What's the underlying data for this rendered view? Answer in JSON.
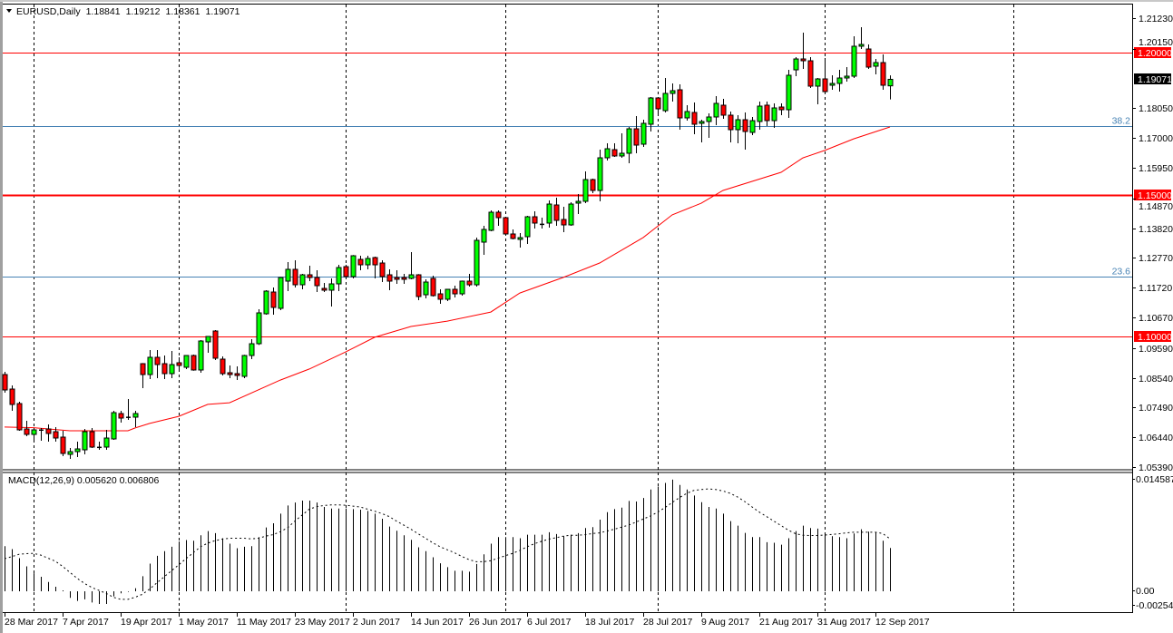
{
  "header": {
    "menu_icon": "triangle-down-icon",
    "symbol": "EURUSD,Daily",
    "open": "1.18841",
    "high": "1.19212",
    "low": "1.18361",
    "close": "1.19071"
  },
  "macd": {
    "legend": "MACD(12,26,9) 0.005620 0.006806",
    "scale_max_label": "0.014587",
    "zero_label": "0.00",
    "scale_min_label": "-0.002543",
    "range": [
      -0.002543,
      0.014587
    ],
    "histogram": [
      0.00586,
      0.00547,
      0.0043,
      0.00324,
      0.00234,
      0.00188,
      0.00121,
      0.00059,
      0.00012,
      -0.00086,
      -0.00125,
      -0.00105,
      -0.00145,
      -0.00164,
      -0.00164,
      -0.00066,
      -0.00027,
      -8e-05,
      0.00039,
      0.00195,
      0.00359,
      0.00461,
      0.0052,
      0.00578,
      0.00645,
      0.00664,
      0.00656,
      0.00727,
      0.00781,
      0.00754,
      0.00688,
      0.00617,
      0.00559,
      0.00578,
      0.00586,
      0.00703,
      0.00828,
      0.00883,
      0.01008,
      0.01113,
      0.01152,
      0.01176,
      0.01176,
      0.01152,
      0.01094,
      0.01074,
      0.01074,
      0.01074,
      0.01066,
      0.01059,
      0.01043,
      0.01008,
      0.00941,
      0.0084,
      0.00785,
      0.00727,
      0.00668,
      0.0057,
      0.0052,
      0.00441,
      0.00363,
      0.00313,
      0.00266,
      0.00266,
      0.00254,
      0.00355,
      0.0048,
      0.00617,
      0.00703,
      0.00703,
      0.00703,
      0.00688,
      0.00734,
      0.00734,
      0.00734,
      0.00766,
      0.00742,
      0.00715,
      0.00734,
      0.00754,
      0.0082,
      0.00832,
      0.0093,
      0.01027,
      0.01066,
      0.01086,
      0.01172,
      0.01164,
      0.01211,
      0.0132,
      0.01359,
      0.01406,
      0.01449,
      0.01379,
      0.0132,
      0.01242,
      0.01156,
      0.01094,
      0.01074,
      0.01008,
      0.0091,
      0.00852,
      0.00758,
      0.00703,
      0.00703,
      0.00637,
      0.00629,
      0.00605,
      0.00688,
      0.00781,
      0.00852,
      0.0082,
      0.00813,
      0.00754,
      0.00715,
      0.00703,
      0.00688,
      0.0075,
      0.00805,
      0.00773,
      0.00766,
      0.00656,
      0.00562
    ],
    "signal": [
      0.00422,
      0.00449,
      0.0048,
      0.00488,
      0.00492,
      0.00469,
      0.0043,
      0.00391,
      0.00324,
      0.00246,
      0.00168,
      0.00102,
      0.00051,
      0.00012,
      -0.00027,
      -0.00078,
      -0.00105,
      -0.00105,
      -0.00078,
      -0.00039,
      0.00031,
      0.00109,
      0.00188,
      0.00266,
      0.00344,
      0.00422,
      0.005,
      0.00578,
      0.00625,
      0.00656,
      0.00676,
      0.00688,
      0.00688,
      0.00688,
      0.0068,
      0.00688,
      0.00715,
      0.00734,
      0.00773,
      0.00824,
      0.0091,
      0.00988,
      0.01066,
      0.01098,
      0.01113,
      0.01121,
      0.01121,
      0.01117,
      0.01105,
      0.01094,
      0.01066,
      0.01039,
      0.01008,
      0.00969,
      0.0091,
      0.00859,
      0.00805,
      0.00746,
      0.00688,
      0.00629,
      0.00578,
      0.00539,
      0.005,
      0.00453,
      0.0041,
      0.00383,
      0.00383,
      0.00398,
      0.0043,
      0.00461,
      0.00492,
      0.00531,
      0.00578,
      0.00617,
      0.00648,
      0.00676,
      0.00695,
      0.00715,
      0.00727,
      0.00727,
      0.00734,
      0.0075,
      0.00758,
      0.00781,
      0.00805,
      0.00832,
      0.00859,
      0.00898,
      0.00938,
      0.00977,
      0.01027,
      0.01086,
      0.01152,
      0.01215,
      0.0127,
      0.01309,
      0.0132,
      0.01328,
      0.0132,
      0.01301,
      0.0127,
      0.01223,
      0.01164,
      0.01094,
      0.01027,
      0.00969,
      0.0091,
      0.00852,
      0.00793,
      0.00746,
      0.00727,
      0.00723,
      0.00723,
      0.0073,
      0.00738,
      0.00746,
      0.00758,
      0.00766,
      0.00766,
      0.00766,
      0.00766,
      0.0075,
      0.006806
    ]
  },
  "price_axis": {
    "range": [
      1.0539,
      1.2123
    ],
    "ticks": [
      "1.21230",
      "1.20150",
      "1.18050",
      "1.17000",
      "1.15950",
      "1.14870",
      "1.13820",
      "1.12770",
      "1.11720",
      "1.10670",
      "1.09590",
      "1.08540",
      "1.07490",
      "1.06440",
      "1.05390"
    ],
    "current_price_label": "1.19071",
    "current_price": 1.19071
  },
  "horizontal_levels": [
    {
      "price": 1.2,
      "label": "1.20000",
      "color": "#ff0000",
      "style": "thin"
    },
    {
      "price": 1.15,
      "label": "1.15000",
      "color": "#ff0000",
      "style": "thick"
    },
    {
      "price": 1.1,
      "label": "1.10000",
      "color": "#ff0000",
      "style": "thin"
    }
  ],
  "fibonacci_levels": [
    {
      "price": 1.17422,
      "label": "38.2",
      "color": "#4682b4"
    },
    {
      "price": 1.1211,
      "label": "23.6",
      "color": "#4682b4"
    }
  ],
  "colors": {
    "bull": "#00ff00",
    "bear": "#ff0000",
    "outline": "#000000",
    "moving_average": "#ff0000",
    "grid": "#000000"
  },
  "date_axis": {
    "labels": [
      {
        "bar": 0,
        "text": "28 Mar 2017"
      },
      {
        "bar": 8,
        "text": "7 Apr 2017"
      },
      {
        "bar": 16,
        "text": "19 Apr 2017"
      },
      {
        "bar": 24,
        "text": "1 May 2017"
      },
      {
        "bar": 32,
        "text": "11 May 2017"
      },
      {
        "bar": 40,
        "text": "23 May 2017"
      },
      {
        "bar": 48,
        "text": "2 Jun 2017"
      },
      {
        "bar": 56,
        "text": "14 Jun 2017"
      },
      {
        "bar": 64,
        "text": "26 Jun 2017"
      },
      {
        "bar": 72,
        "text": "6 Jul 2017"
      },
      {
        "bar": 80,
        "text": "18 Jul 2017"
      },
      {
        "bar": 88,
        "text": "28 Jul 2017"
      },
      {
        "bar": 96,
        "text": "9 Aug 2017"
      },
      {
        "bar": 104,
        "text": "21 Aug 2017"
      },
      {
        "bar": 112,
        "text": "31 Aug 2017"
      },
      {
        "bar": 120,
        "text": "12 Sep 2017"
      }
    ]
  },
  "moving_average": [
    [
      0,
      1.068
    ],
    [
      4,
      1.0678
    ],
    [
      9,
      1.0667
    ],
    [
      17,
      1.0667
    ],
    [
      18,
      1.0677
    ],
    [
      20,
      1.0693
    ],
    [
      24,
      1.0718
    ],
    [
      28,
      1.076
    ],
    [
      31,
      1.0766
    ],
    [
      38,
      1.0846
    ],
    [
      42,
      1.0885
    ],
    [
      47,
      1.0945
    ],
    [
      51,
      1.0997
    ],
    [
      56,
      1.1035
    ],
    [
      61,
      1.1054
    ],
    [
      67,
      1.1086
    ],
    [
      71,
      1.1153
    ],
    [
      77,
      1.1208
    ],
    [
      82,
      1.1259
    ],
    [
      88,
      1.1349
    ],
    [
      92,
      1.1429
    ],
    [
      96,
      1.147
    ],
    [
      99,
      1.1515
    ],
    [
      107,
      1.1579
    ],
    [
      110,
      1.163
    ],
    [
      113,
      1.1656
    ],
    [
      117,
      1.1697
    ],
    [
      122,
      1.1739
    ]
  ],
  "chart_data": {
    "type": "candlestick",
    "symbol": "EURUSD",
    "timeframe": "Daily",
    "ohlc": [
      [
        1.08654,
        1.0875,
        1.08014,
        1.0811
      ],
      [
        1.08142,
        1.0827,
        1.07374,
        1.07598
      ],
      [
        1.0763,
        1.07694,
        1.0667,
        1.06702
      ],
      [
        1.06734,
        1.07022,
        1.06478,
        1.06542
      ],
      [
        1.06542,
        1.06766,
        1.06286,
        1.06702
      ],
      [
        1.06702,
        1.06766,
        1.06318,
        1.0671
      ],
      [
        1.06734,
        1.06894,
        1.06286,
        1.06574
      ],
      [
        1.06638,
        1.06798,
        1.06286,
        1.06414
      ],
      [
        1.06446,
        1.0667,
        1.05774,
        1.0587
      ],
      [
        1.05838,
        1.06062,
        1.05678,
        1.05934
      ],
      [
        1.05934,
        1.06286,
        1.05742,
        1.0603
      ],
      [
        1.05998,
        1.06734,
        1.05838,
        1.06638
      ],
      [
        1.06638,
        1.06766,
        1.06062,
        1.06094
      ],
      [
        1.06094,
        1.06286,
        1.05998,
        1.061
      ],
      [
        1.06094,
        1.06702,
        1.05998,
        1.06414
      ],
      [
        1.06382,
        1.07374,
        1.0635,
        1.0731
      ],
      [
        1.07278,
        1.07374,
        1.06958,
        1.07118
      ],
      [
        1.0715,
        1.0779,
        1.07054,
        1.0716
      ],
      [
        1.0715,
        1.07374,
        1.06798,
        1.07278
      ],
      [
        1.09038,
        1.0906,
        1.08174,
        1.08654
      ],
      [
        1.08654,
        1.09518,
        1.08494,
        1.09262
      ],
      [
        1.09262,
        1.09518,
        1.08526,
        1.09006
      ],
      [
        1.09038,
        1.09326,
        1.08494,
        1.08686
      ],
      [
        1.08686,
        1.09486,
        1.08526,
        1.09006
      ],
      [
        1.0907,
        1.09262,
        1.08814,
        1.08974
      ],
      [
        1.0891,
        1.0934,
        1.08846,
        1.09326
      ],
      [
        1.09326,
        1.09358,
        1.0879,
        1.08814
      ],
      [
        1.08814,
        1.0987,
        1.08718,
        1.09838
      ],
      [
        1.09806,
        1.1001,
        1.09422,
        1.09998
      ],
      [
        1.1019,
        1.10222,
        1.09166,
        1.0923
      ],
      [
        1.09198,
        1.09294,
        1.08622,
        1.08686
      ],
      [
        1.08718,
        1.08974,
        1.08526,
        1.08654
      ],
      [
        1.08686,
        1.08942,
        1.08462,
        1.08622
      ],
      [
        1.0859,
        1.0935,
        1.08526,
        1.09326
      ],
      [
        1.09326,
        1.09902,
        1.09198,
        1.09742
      ],
      [
        1.09742,
        1.10958,
        1.097,
        1.1083
      ],
      [
        1.10798,
        1.1163,
        1.10766,
        1.11598
      ],
      [
        1.11566,
        1.11726,
        1.10766,
        1.11022
      ],
      [
        1.1099,
        1.121,
        1.10926,
        1.12078
      ],
      [
        1.1195,
        1.12622,
        1.11598,
        1.12366
      ],
      [
        1.12366,
        1.12686,
        1.11726,
        1.11822
      ],
      [
        1.11822,
        1.12206,
        1.11662,
        1.12174
      ],
      [
        1.12174,
        1.12494,
        1.1195,
        1.12078
      ],
      [
        1.12078,
        1.12334,
        1.11566,
        1.1179
      ],
      [
        1.11694,
        1.11886,
        1.11566,
        1.1163
      ],
      [
        1.1163,
        1.12046,
        1.11054,
        1.11854
      ],
      [
        1.11854,
        1.12526,
        1.11598,
        1.1243
      ],
      [
        1.12462,
        1.12526,
        1.12046,
        1.1211
      ],
      [
        1.1211,
        1.1287,
        1.12046,
        1.12846
      ],
      [
        1.12718,
        1.12846,
        1.12334,
        1.12526
      ],
      [
        1.12526,
        1.12846,
        1.12366,
        1.1275
      ],
      [
        1.12782,
        1.12814,
        1.12046,
        1.12526
      ],
      [
        1.1259,
        1.12686,
        1.11918,
        1.1211
      ],
      [
        1.12174,
        1.12366,
        1.1163,
        1.1195
      ],
      [
        1.12078,
        1.12334,
        1.11854,
        1.12014
      ],
      [
        1.12078,
        1.12206,
        1.11854,
        1.12014
      ],
      [
        1.12046,
        1.12974,
        1.12014,
        1.12174
      ],
      [
        1.12174,
        1.122,
        1.11278,
        1.11406
      ],
      [
        1.1147,
        1.12014,
        1.11342,
        1.11918
      ],
      [
        1.12046,
        1.12142,
        1.11406,
        1.11438
      ],
      [
        1.11502,
        1.11662,
        1.1115,
        1.1131
      ],
      [
        1.1131,
        1.1168,
        1.11246,
        1.11662
      ],
      [
        1.11662,
        1.1179,
        1.11374,
        1.11502
      ],
      [
        1.11502,
        1.1197,
        1.11438,
        1.1195
      ],
      [
        1.1195,
        1.12206,
        1.11758,
        1.11822
      ],
      [
        1.11822,
        1.13486,
        1.11758,
        1.1339
      ],
      [
        1.13326,
        1.13902,
        1.12878,
        1.13774
      ],
      [
        1.13742,
        1.14446,
        1.1371,
        1.14382
      ],
      [
        1.14382,
        1.14446,
        1.13902,
        1.1419
      ],
      [
        1.1419,
        1.1421,
        1.1355,
        1.13614
      ],
      [
        1.13614,
        1.13774,
        1.13422,
        1.13454
      ],
      [
        1.13422,
        1.13646,
        1.13134,
        1.13486
      ],
      [
        1.13518,
        1.14254,
        1.13262,
        1.14222
      ],
      [
        1.14222,
        1.14414,
        1.13806,
        1.13998
      ],
      [
        1.13966,
        1.1419,
        1.13806,
        1.1397
      ],
      [
        1.13998,
        1.14798,
        1.13838,
        1.1467
      ],
      [
        1.14638,
        1.14894,
        1.13902,
        1.14094
      ],
      [
        1.14126,
        1.14574,
        1.13678,
        1.13934
      ],
      [
        1.13934,
        1.14734,
        1.13902,
        1.1467
      ],
      [
        1.14702,
        1.15022,
        1.14318,
        1.14766
      ],
      [
        1.14766,
        1.15822,
        1.14702,
        1.15534
      ],
      [
        1.15534,
        1.15566,
        1.15054,
        1.1515
      ],
      [
        1.1515,
        1.1659,
        1.14766,
        1.16302
      ],
      [
        1.16302,
        1.16814,
        1.16206,
        1.16622
      ],
      [
        1.1659,
        1.16814,
        1.16334,
        1.16366
      ],
      [
        1.16366,
        1.17166,
        1.16302,
        1.16462
      ],
      [
        1.16462,
        1.1739,
        1.1611,
        1.17326
      ],
      [
        1.17326,
        1.17774,
        1.16462,
        1.1675
      ],
      [
        1.16782,
        1.17646,
        1.16686,
        1.17518
      ],
      [
        1.17486,
        1.18446,
        1.1723,
        1.18414
      ],
      [
        1.18414,
        1.18446,
        1.17806,
        1.1803
      ],
      [
        1.17966,
        1.19118,
        1.17902,
        1.18574
      ],
      [
        1.18574,
        1.18926,
        1.18286,
        1.1867
      ],
      [
        1.18702,
        1.18894,
        1.17294,
        1.1771
      ],
      [
        1.1771,
        1.18158,
        1.17614,
        1.17934
      ],
      [
        1.17902,
        1.18254,
        1.17134,
        1.17486
      ],
      [
        1.17518,
        1.17646,
        1.16846,
        1.17582
      ],
      [
        1.17582,
        1.1787,
        1.17006,
        1.17742
      ],
      [
        1.17742,
        1.18478,
        1.17454,
        1.18222
      ],
      [
        1.18158,
        1.18382,
        1.17678,
        1.17806
      ],
      [
        1.17806,
        1.17934,
        1.16846,
        1.17294
      ],
      [
        1.17294,
        1.17806,
        1.16814,
        1.17646
      ],
      [
        1.17646,
        1.17902,
        1.1659,
        1.1723
      ],
      [
        1.17198,
        1.17742,
        1.17102,
        1.17614
      ],
      [
        1.17582,
        1.18286,
        1.17294,
        1.18126
      ],
      [
        1.18158,
        1.18286,
        1.17422,
        1.17614
      ],
      [
        1.17614,
        1.18222,
        1.17358,
        1.18062
      ],
      [
        1.18094,
        1.18222,
        1.17806,
        1.17998
      ],
      [
        1.17998,
        1.19406,
        1.1771,
        1.19214
      ],
      [
        1.19406,
        1.19854,
        1.19182,
        1.1979
      ],
      [
        1.1979,
        1.20718,
        1.19438,
        1.19726
      ],
      [
        1.19726,
        1.19854,
        1.18766,
        1.1883
      ],
      [
        1.1883,
        1.19118,
        1.1819,
        1.19086
      ],
      [
        1.19086,
        1.19822,
        1.18606,
        1.18638
      ],
      [
        1.18862,
        1.19214,
        1.18702,
        1.18926
      ],
      [
        1.18926,
        1.19406,
        1.18638,
        1.19118
      ],
      [
        1.19118,
        1.19502,
        1.1899,
        1.19182
      ],
      [
        1.19182,
        1.2059,
        1.19118,
        1.20238
      ],
      [
        1.20238,
        1.2091,
        1.20142,
        1.20302
      ],
      [
        1.20142,
        1.20302,
        1.19438,
        1.19502
      ],
      [
        1.19534,
        1.1979,
        1.19246,
        1.19662
      ],
      [
        1.19662,
        1.1995,
        1.18702,
        1.18862
      ],
      [
        1.18841,
        1.19212,
        1.18361,
        1.19071
      ]
    ]
  }
}
